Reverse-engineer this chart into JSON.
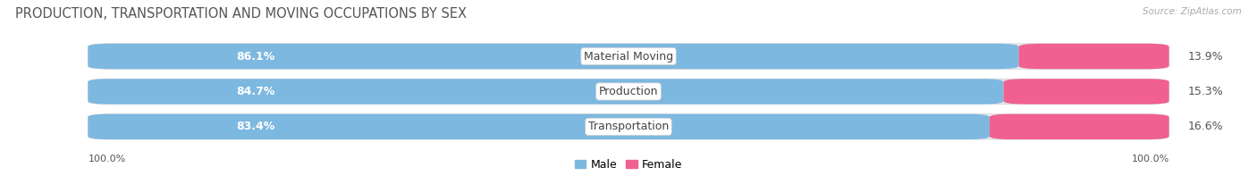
{
  "title": "PRODUCTION, TRANSPORTATION AND MOVING OCCUPATIONS BY SEX",
  "source": "Source: ZipAtlas.com",
  "categories": [
    "Material Moving",
    "Production",
    "Transportation"
  ],
  "male_values": [
    86.1,
    84.7,
    83.4
  ],
  "female_values": [
    13.9,
    15.3,
    16.6
  ],
  "male_color": "#7db8e0",
  "female_color": "#f06090",
  "bar_bg_color": "#ececec",
  "male_label": "Male",
  "female_label": "Female",
  "title_fontsize": 10.5,
  "label_fontsize": 9,
  "pct_fontsize": 9,
  "source_fontsize": 7.5,
  "axis_label_fontsize": 8,
  "figsize": [
    14.06,
    1.97
  ],
  "dpi": 100
}
